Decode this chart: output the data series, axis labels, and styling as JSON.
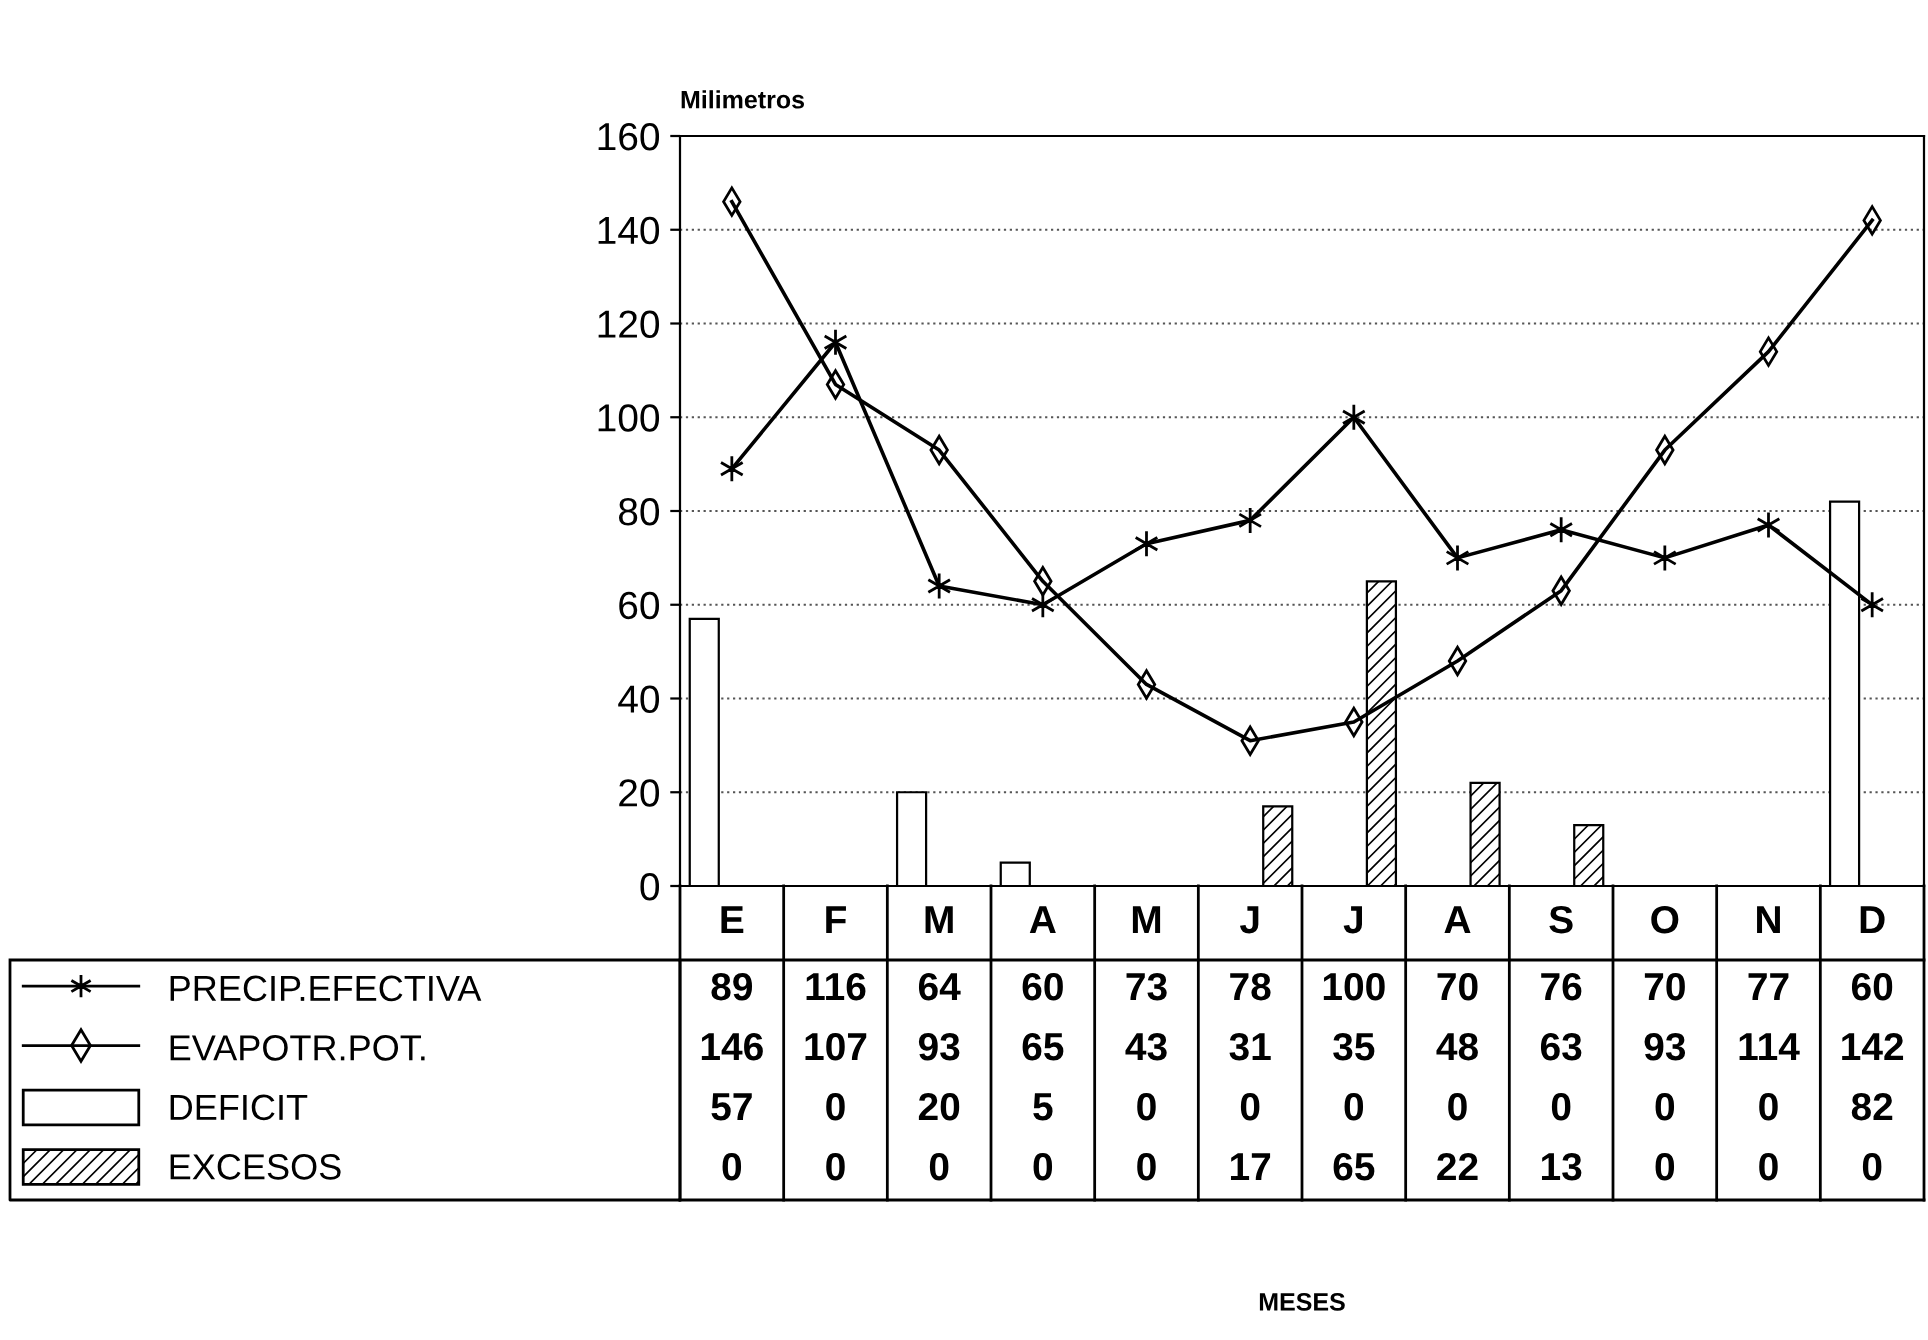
{
  "chart_data": {
    "type": "line",
    "ylabel": "Milimetros",
    "categories": [
      "E",
      "F",
      "M",
      "A",
      "M",
      "J",
      "J",
      "A",
      "S",
      "O",
      "N",
      "D"
    ],
    "series": [
      {
        "name": "PRECIP.EFECTIVA",
        "color": "#000000",
        "marker": "cross",
        "values": [
          89,
          116,
          64,
          60,
          73,
          78,
          100,
          70,
          76,
          70,
          77,
          60
        ]
      },
      {
        "name": "EVAPOTR.POT.",
        "color": "#000000",
        "marker": "diamond",
        "values": [
          146,
          107,
          93,
          65,
          43,
          31,
          35,
          48,
          63,
          93,
          114,
          142
        ]
      },
      {
        "name": "DEFICIT",
        "type": "bar",
        "color": "#ffffff",
        "values": [
          57,
          0,
          20,
          5,
          0,
          0,
          0,
          0,
          0,
          0,
          0,
          82
        ]
      },
      {
        "name": "EXCESOS",
        "type": "bar",
        "color": "#000000",
        "values": [
          0,
          0,
          0,
          0,
          0,
          17,
          65,
          22,
          13,
          0,
          0,
          0
        ]
      }
    ],
    "ylim": [
      0,
      160
    ],
    "yticks": [
      0,
      20,
      40,
      60,
      80,
      100,
      120,
      140,
      160
    ],
    "annotations": [
      "MESES"
    ],
    "grid": "y",
    "legend": "bottom left",
    "data_labels": true
  }
}
